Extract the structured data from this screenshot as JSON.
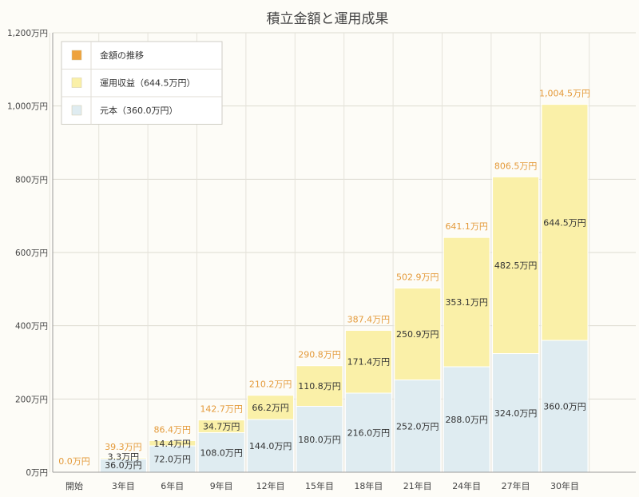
{
  "chart_data": {
    "type": "bar",
    "stacked": true,
    "title": "積立金額と運用成果",
    "categories": [
      "開始",
      "3年目",
      "6年目",
      "9年目",
      "12年目",
      "15年目",
      "18年目",
      "21年目",
      "24年目",
      "27年目",
      "30年目"
    ],
    "series": [
      {
        "name": "元本（360.0万円）",
        "color": "#dfecf1",
        "values": [
          0,
          36.0,
          72.0,
          108.0,
          144.0,
          180.0,
          216.0,
          252.0,
          288.0,
          324.0,
          360.0
        ],
        "labels": [
          "",
          "36.0万円",
          "72.0万円",
          "108.0万円",
          "144.0万円",
          "180.0万円",
          "216.0万円",
          "252.0万円",
          "288.0万円",
          "324.0万円",
          "360.0万円"
        ]
      },
      {
        "name": "運用収益（644.5万円）",
        "color": "#faf0a8",
        "values": [
          0,
          3.3,
          14.4,
          34.7,
          66.2,
          110.8,
          171.4,
          250.9,
          353.1,
          482.5,
          644.5
        ],
        "labels": [
          "",
          "3.3万円",
          "14.4万円",
          "34.7万円",
          "66.2万円",
          "110.8万円",
          "171.4万円",
          "250.9万円",
          "353.1万円",
          "482.5万円",
          "644.5万円"
        ]
      }
    ],
    "totals": {
      "name": "金額の推移",
      "color": "#eea23c",
      "values": [
        0.0,
        39.3,
        86.4,
        142.7,
        210.2,
        290.8,
        387.4,
        502.9,
        641.1,
        806.5,
        1004.5
      ],
      "labels": [
        "0.0万円",
        "39.3万円",
        "86.4万円",
        "142.7万円",
        "210.2万円",
        "290.8万円",
        "387.4万円",
        "502.9万円",
        "641.1万円",
        "806.5万円",
        "1,004.5万円"
      ]
    },
    "legend_order": [
      "金額の推移",
      "運用収益（644.5万円）",
      "元本（360.0万円）"
    ],
    "legend_position": "top-left",
    "ylim": [
      0,
      1200
    ],
    "yticks": [
      0,
      200,
      400,
      600,
      800,
      1000,
      1200
    ],
    "ytick_labels": [
      "0万円",
      "200万円",
      "400万円",
      "600万円",
      "800万円",
      "1,000万円",
      "1,200万円"
    ],
    "grid": true,
    "xlabel": "",
    "ylabel": ""
  }
}
